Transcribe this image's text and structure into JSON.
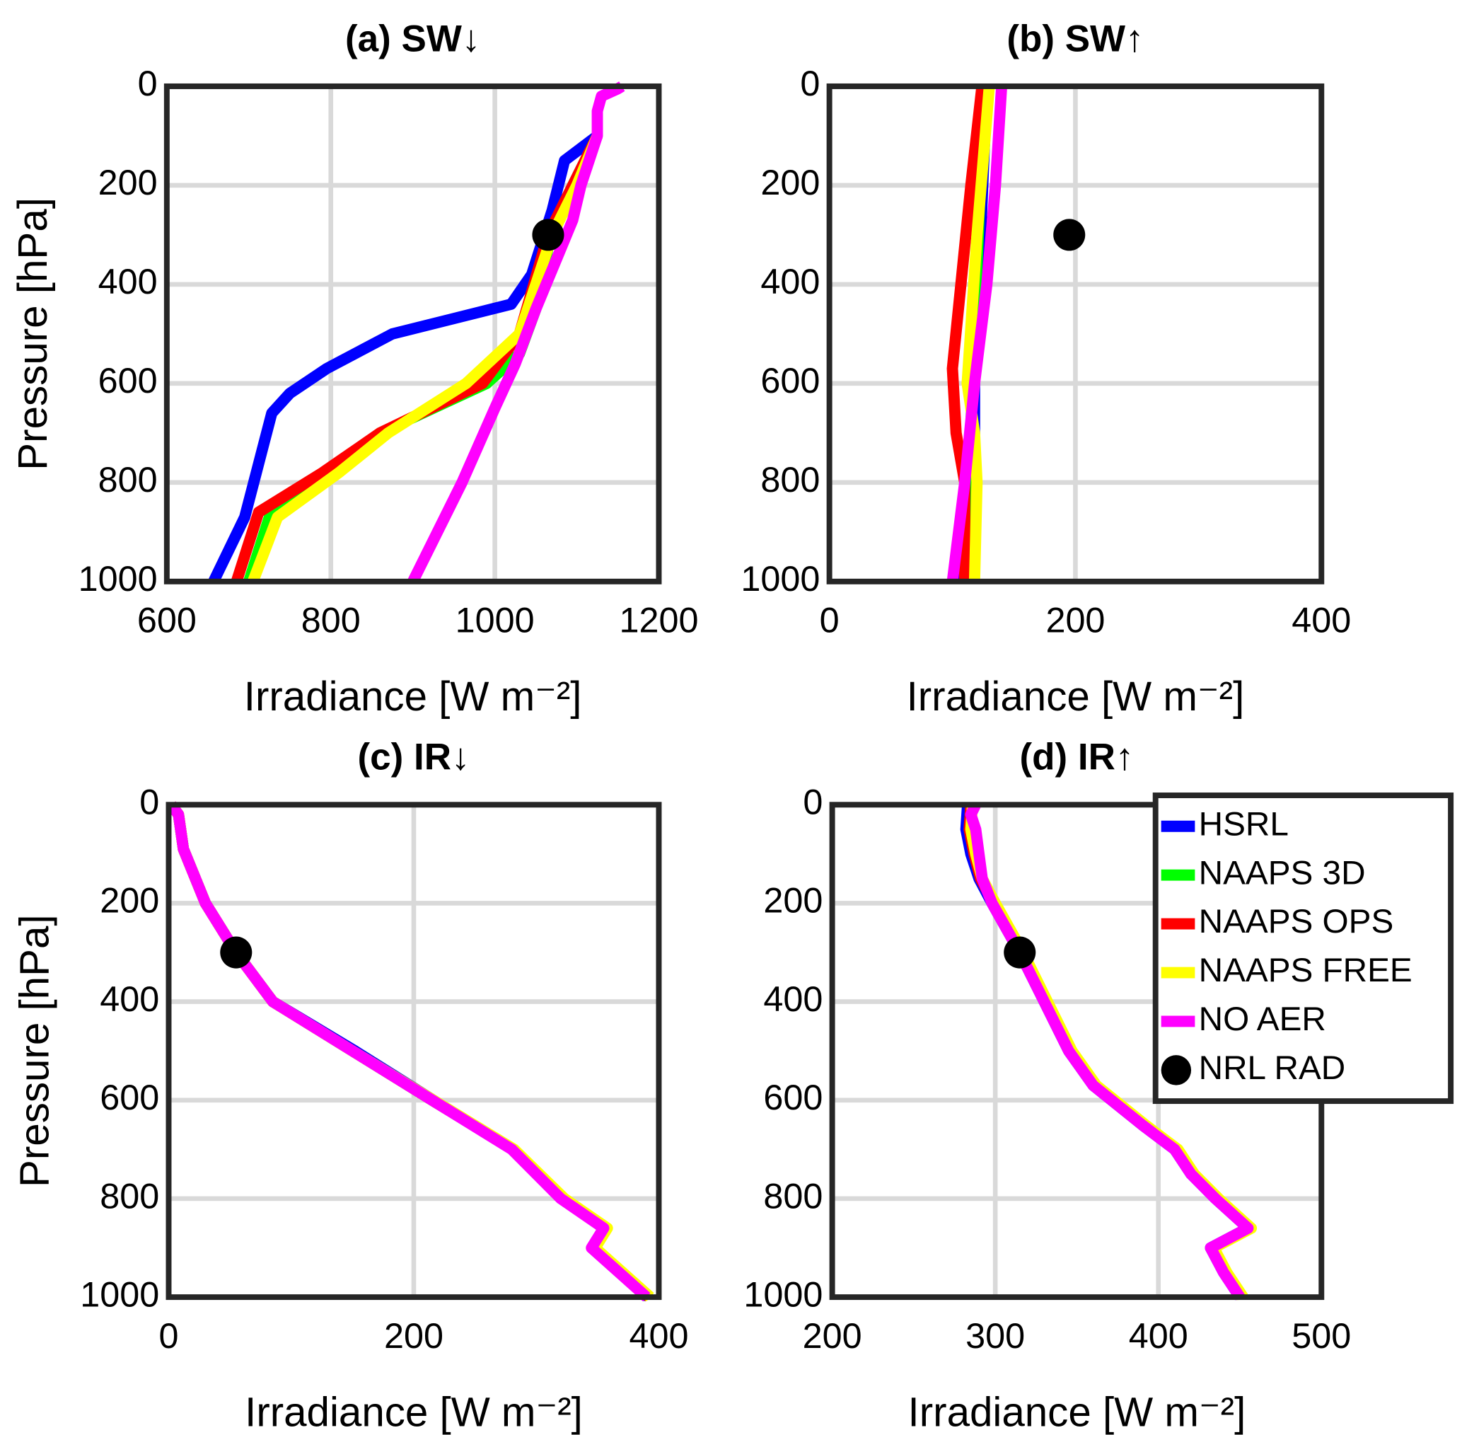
{
  "chart_data": [
    {
      "type": "line",
      "title": "(a) SW↓",
      "xlabel": "Irradiance [W m⁻²]",
      "ylabel": "Pressure [hPa]",
      "xlim": [
        600,
        1200
      ],
      "xticks": [
        600,
        800,
        1000,
        1200
      ],
      "ylim": [
        0,
        1000
      ],
      "yticks": [
        0,
        200,
        400,
        600,
        800,
        1000
      ],
      "yreverse": true,
      "grid": true,
      "series": [
        {
          "name": "HSRL",
          "color": "#0000ff",
          "x": [
            1125,
            1085,
            1070,
            1045,
            1020,
            875,
            795,
            750,
            728,
            695,
            657
          ],
          "y": [
            100,
            150,
            250,
            380,
            440,
            500,
            570,
            620,
            660,
            870,
            1000
          ]
        },
        {
          "name": "NAAPS 3D",
          "color": "#00ff00",
          "x": [
            1125,
            1095,
            1068,
            1050,
            1030,
            990,
            860,
            780,
            725,
            700
          ],
          "y": [
            100,
            200,
            300,
            450,
            540,
            600,
            700,
            800,
            870,
            1000
          ]
        },
        {
          "name": "NAAPS OPS",
          "color": "#ff0000",
          "x": [
            1125,
            1095,
            1065,
            1030,
            985,
            860,
            790,
            712,
            685
          ],
          "y": [
            100,
            200,
            300,
            500,
            600,
            700,
            780,
            860,
            1000
          ]
        },
        {
          "name": "NAAPS FREE",
          "color": "#ffff00",
          "x": [
            1125,
            1100,
            1070,
            1030,
            965,
            870,
            810,
            735,
            705
          ],
          "y": [
            100,
            200,
            300,
            500,
            600,
            700,
            780,
            870,
            1000
          ]
        },
        {
          "name": "NO AER",
          "color": "#ff00ff",
          "x": [
            1155,
            1150,
            1130,
            1125,
            1125,
            1105,
            1095,
            1075,
            1050,
            1025,
            1000,
            960,
            900
          ],
          "y": [
            0,
            5,
            20,
            50,
            100,
            200,
            270,
            350,
            450,
            560,
            650,
            800,
            1000
          ]
        },
        {
          "name": "NRL RAD",
          "color": "#000000",
          "marker": "o",
          "x": [
            1065
          ],
          "y": [
            300
          ]
        }
      ]
    },
    {
      "type": "line",
      "title": "(b) SW↑",
      "xlabel": "Irradiance [W m⁻²]",
      "xlim": [
        0,
        400
      ],
      "xticks": [
        0,
        200,
        400
      ],
      "ylim": [
        0,
        1000
      ],
      "yticks": [
        0,
        200,
        400,
        600,
        800,
        1000
      ],
      "yreverse": true,
      "grid": true,
      "series": [
        {
          "name": "HSRL",
          "color": "#0000ff",
          "x": [
            128,
            118,
            118,
            108
          ],
          "y": [
            0,
            600,
            700,
            1000
          ]
        },
        {
          "name": "NAAPS 3D",
          "color": "#00ff00",
          "x": [
            126,
            116,
            115,
            112
          ],
          "y": [
            0,
            600,
            700,
            1000
          ]
        },
        {
          "name": "NAAPS OPS",
          "color": "#ff0000",
          "x": [
            124,
            115,
            100,
            103,
            110,
            110
          ],
          "y": [
            0,
            200,
            570,
            700,
            800,
            1000
          ]
        },
        {
          "name": "NAAPS FREE",
          "color": "#ffff00",
          "x": [
            130,
            120,
            112,
            118,
            120,
            118
          ],
          "y": [
            0,
            300,
            600,
            700,
            800,
            1000
          ]
        },
        {
          "name": "NO AER",
          "color": "#ff00ff",
          "x": [
            140,
            135,
            128,
            118,
            110,
            100
          ],
          "y": [
            0,
            200,
            400,
            600,
            800,
            1000
          ]
        },
        {
          "name": "NRL RAD",
          "color": "#000000",
          "marker": "o",
          "x": [
            195
          ],
          "y": [
            300
          ]
        }
      ]
    },
    {
      "type": "line",
      "title": "(c) IR↓",
      "xlabel": "Irradiance [W m⁻²]",
      "ylabel": "Pressure [hPa]",
      "xlim": [
        0,
        400
      ],
      "xticks": [
        0,
        200,
        400
      ],
      "ylim": [
        0,
        1000
      ],
      "yticks": [
        0,
        200,
        400,
        600,
        800,
        1000
      ],
      "yreverse": true,
      "grid": true,
      "series": [
        {
          "name": "HSRL",
          "color": "#0000ff",
          "x": [
            2,
            8,
            12,
            30,
            55,
            85,
            152,
            216,
            281,
            321,
            356,
            346,
            391
          ],
          "y": [
            0,
            20,
            90,
            200,
            300,
            400,
            500,
            600,
            700,
            800,
            860,
            900,
            1000
          ]
        },
        {
          "name": "NAAPS 3D",
          "color": "#00ff00",
          "x": [
            2,
            8,
            12,
            30,
            55,
            85,
            150,
            215,
            281,
            322,
            357,
            347,
            392
          ],
          "y": [
            0,
            20,
            90,
            200,
            300,
            400,
            500,
            600,
            700,
            800,
            860,
            900,
            1000
          ]
        },
        {
          "name": "NAAPS OPS",
          "color": "#ff0000",
          "x": [
            2,
            8,
            12,
            30,
            55,
            85,
            150,
            215,
            281,
            322,
            357,
            347,
            392
          ],
          "y": [
            0,
            20,
            90,
            200,
            300,
            400,
            500,
            600,
            700,
            800,
            860,
            900,
            1000
          ]
        },
        {
          "name": "NAAPS FREE",
          "color": "#ffff00",
          "x": [
            2,
            8,
            12,
            30,
            55,
            85,
            150,
            216,
            282,
            323,
            358,
            348,
            393
          ],
          "y": [
            0,
            20,
            90,
            200,
            300,
            400,
            500,
            600,
            700,
            800,
            860,
            900,
            1000
          ]
        },
        {
          "name": "NO AER",
          "color": "#ff00ff",
          "x": [
            2,
            8,
            12,
            30,
            55,
            85,
            150,
            215,
            280,
            320,
            355,
            345,
            390
          ],
          "y": [
            0,
            20,
            90,
            200,
            300,
            400,
            500,
            600,
            700,
            800,
            860,
            900,
            1000
          ]
        },
        {
          "name": "NRL RAD",
          "color": "#000000",
          "marker": "o",
          "x": [
            55
          ],
          "y": [
            300
          ]
        }
      ]
    },
    {
      "type": "line",
      "title": "(d) IR↑",
      "xlabel": "Irradiance [W m⁻²]",
      "legend": "upper right",
      "xlim": [
        200,
        500
      ],
      "xticks": [
        200,
        300,
        400,
        500
      ],
      "ylim": [
        0,
        1000
      ],
      "yticks": [
        0,
        200,
        400,
        600,
        800,
        1000
      ],
      "yreverse": true,
      "grid": true,
      "series": [
        {
          "name": "HSRL",
          "color": "#0000ff",
          "x": [
            283,
            282,
            285,
            290,
            298,
            315,
            330,
            345,
            360,
            390,
            410,
            420,
            435,
            455,
            432,
            440,
            450
          ],
          "y": [
            0,
            50,
            100,
            150,
            200,
            300,
            400,
            500,
            570,
            650,
            700,
            750,
            800,
            860,
            900,
            950,
            1000
          ]
        },
        {
          "name": "NAAPS 3D",
          "color": "#00ff00",
          "x": [
            285,
            284,
            287,
            291,
            299,
            316,
            331,
            346,
            361,
            391,
            411,
            421,
            436,
            456,
            433,
            441,
            451
          ],
          "y": [
            0,
            50,
            100,
            150,
            200,
            300,
            400,
            500,
            570,
            650,
            700,
            750,
            800,
            860,
            900,
            950,
            1000
          ]
        },
        {
          "name": "NAAPS OPS",
          "color": "#ff0000",
          "x": [
            285,
            284,
            287,
            291,
            299,
            316,
            331,
            346,
            361,
            391,
            411,
            421,
            436,
            456,
            433,
            441,
            451
          ],
          "y": [
            0,
            50,
            100,
            150,
            200,
            300,
            400,
            500,
            570,
            650,
            700,
            750,
            800,
            860,
            900,
            950,
            1000
          ]
        },
        {
          "name": "NAAPS FREE",
          "color": "#ffff00",
          "x": [
            286,
            285,
            288,
            292,
            300,
            317,
            332,
            347,
            362,
            392,
            412,
            422,
            437,
            457,
            434,
            442,
            452
          ],
          "y": [
            0,
            50,
            100,
            150,
            200,
            300,
            400,
            500,
            570,
            650,
            700,
            750,
            800,
            860,
            900,
            950,
            1000
          ]
        },
        {
          "name": "NO AER",
          "color": "#ff00ff",
          "x": [
            288,
            285,
            288,
            290,
            292,
            298,
            315,
            330,
            345,
            360,
            390,
            410,
            420,
            435,
            455,
            432,
            440,
            450
          ],
          "y": [
            0,
            20,
            50,
            100,
            150,
            200,
            300,
            400,
            500,
            570,
            650,
            700,
            750,
            800,
            860,
            900,
            950,
            1000
          ]
        },
        {
          "name": "NRL RAD",
          "color": "#000000",
          "marker": "o",
          "x": [
            315
          ],
          "y": [
            300
          ]
        }
      ]
    }
  ]
}
